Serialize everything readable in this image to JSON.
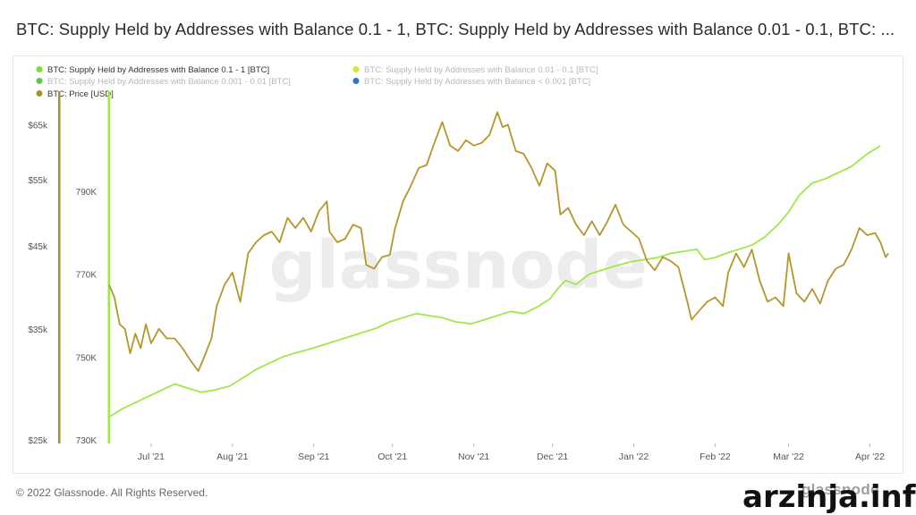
{
  "title": "BTC: Supply Held by Addresses with Balance 0.1 - 1, BTC: Supply Held by Addresses with Balance 0.01 - 0.1, BTC: ...",
  "footer": "© 2022 Glassnode. All Rights Reserved.",
  "brand": "glassnode",
  "overlay_site": "arzinja.info",
  "background_watermark": "glassnode",
  "colors": {
    "supply_line": "#9ee84a",
    "price_line": "#b5962b",
    "left_axis_bar": "#a8902a",
    "legend_disabled_text": "#b8b8b8"
  },
  "legend": [
    {
      "label": "BTC: Supply Held by Addresses with Balance 0.1 - 1 [BTC]",
      "color": "#7cdb3c",
      "active": true
    },
    {
      "label": "BTC: Supply Held by Addresses with Balance 0.01 - 0.1 [BTC]",
      "color": "#d4e83a",
      "active": false
    },
    {
      "label": "BTC: Supply Held by Addresses with Balance 0.001 - 0.01 [BTC]",
      "color": "#5cc843",
      "active": false
    },
    {
      "label": "BTC: Supply Held by Addresses with Balance < 0.001 [BTC]",
      "color": "#2f6fd6",
      "active": false
    },
    {
      "label": "BTC: Price [USD]",
      "color": "#a8902a",
      "active": true
    }
  ],
  "chart_data": {
    "type": "line",
    "title": "BTC: Supply Held by Addresses with Balance 0.1 - 1, BTC: Supply Held by Addresses with Balance 0.01 - 0.1, BTC: ...",
    "x_range": [
      "2021-06-15",
      "2022-04-08"
    ],
    "x_ticks": [
      {
        "label": "Jul '21",
        "date": "2021-07-01"
      },
      {
        "label": "Aug '21",
        "date": "2021-08-01"
      },
      {
        "label": "Sep '21",
        "date": "2021-09-01"
      },
      {
        "label": "Oct '21",
        "date": "2021-10-01"
      },
      {
        "label": "Nov '21",
        "date": "2021-11-01"
      },
      {
        "label": "Dec '21",
        "date": "2021-12-01"
      },
      {
        "label": "Jan '22",
        "date": "2022-01-01"
      },
      {
        "label": "Feb '22",
        "date": "2022-02-01"
      },
      {
        "label": "Mar '22",
        "date": "2022-03-01"
      },
      {
        "label": "Apr '22",
        "date": "2022-04-01"
      }
    ],
    "y_left": {
      "label": "",
      "scale": "log",
      "range": [
        25000,
        70000
      ],
      "ticks": [
        "$25k",
        "$35k",
        "$45k",
        "$55k",
        "$65k"
      ],
      "tick_values": [
        25000,
        35000,
        45000,
        55000,
        65000
      ]
    },
    "y_right": {
      "label": "",
      "range": [
        730000,
        812000
      ],
      "ticks": [
        "730K",
        "750K",
        "770K",
        "790K"
      ],
      "tick_values": [
        730000,
        750000,
        770000,
        790000
      ]
    },
    "grid": false,
    "legend_position": "top-left",
    "series": [
      {
        "name": "BTC: Supply Held by Addresses with Balance 0.1 - 1 [BTC]",
        "axis": "right",
        "color": "#9ee84a",
        "points": [
          [
            "2021-06-15",
            735500
          ],
          [
            "2021-06-20",
            737500
          ],
          [
            "2021-06-25",
            739000
          ],
          [
            "2021-06-30",
            740500
          ],
          [
            "2021-07-05",
            742000
          ],
          [
            "2021-07-10",
            743500
          ],
          [
            "2021-07-15",
            742500
          ],
          [
            "2021-07-20",
            741500
          ],
          [
            "2021-07-25",
            742000
          ],
          [
            "2021-07-31",
            743000
          ],
          [
            "2021-08-05",
            745000
          ],
          [
            "2021-08-10",
            747000
          ],
          [
            "2021-08-15",
            748500
          ],
          [
            "2021-08-20",
            750000
          ],
          [
            "2021-08-25",
            751000
          ],
          [
            "2021-08-31",
            752000
          ],
          [
            "2021-09-05",
            753000
          ],
          [
            "2021-09-10",
            754000
          ],
          [
            "2021-09-15",
            755000
          ],
          [
            "2021-09-20",
            756000
          ],
          [
            "2021-09-25",
            757000
          ],
          [
            "2021-09-30",
            758500
          ],
          [
            "2021-10-05",
            759500
          ],
          [
            "2021-10-10",
            760500
          ],
          [
            "2021-10-15",
            760000
          ],
          [
            "2021-10-20",
            759500
          ],
          [
            "2021-10-25",
            758500
          ],
          [
            "2021-10-31",
            758000
          ],
          [
            "2021-11-05",
            759000
          ],
          [
            "2021-11-10",
            760000
          ],
          [
            "2021-11-15",
            761000
          ],
          [
            "2021-11-20",
            760500
          ],
          [
            "2021-11-25",
            762000
          ],
          [
            "2021-11-30",
            764000
          ],
          [
            "2021-12-03",
            766500
          ],
          [
            "2021-12-06",
            768500
          ],
          [
            "2021-12-10",
            767500
          ],
          [
            "2021-12-15",
            770000
          ],
          [
            "2021-12-20",
            771000
          ],
          [
            "2021-12-25",
            772000
          ],
          [
            "2021-12-31",
            773000
          ],
          [
            "2022-01-05",
            773500
          ],
          [
            "2022-01-10",
            774000
          ],
          [
            "2022-01-15",
            775000
          ],
          [
            "2022-01-20",
            775500
          ],
          [
            "2022-01-25",
            776000
          ],
          [
            "2022-01-28",
            773500
          ],
          [
            "2022-02-01",
            774000
          ],
          [
            "2022-02-05",
            775000
          ],
          [
            "2022-02-10",
            776000
          ],
          [
            "2022-02-15",
            777000
          ],
          [
            "2022-02-20",
            779000
          ],
          [
            "2022-02-25",
            782000
          ],
          [
            "2022-03-01",
            785000
          ],
          [
            "2022-03-05",
            789000
          ],
          [
            "2022-03-10",
            792000
          ],
          [
            "2022-03-15",
            793000
          ],
          [
            "2022-03-20",
            794500
          ],
          [
            "2022-03-25",
            796000
          ],
          [
            "2022-03-31",
            799000
          ],
          [
            "2022-04-05",
            801000
          ]
        ]
      },
      {
        "name": "BTC: Price [USD]",
        "axis": "left",
        "color": "#b5962b",
        "points": [
          [
            "2021-06-15",
            40000
          ],
          [
            "2021-06-17",
            38500
          ],
          [
            "2021-06-19",
            35500
          ],
          [
            "2021-06-21",
            35000
          ],
          [
            "2021-06-23",
            32500
          ],
          [
            "2021-06-25",
            34500
          ],
          [
            "2021-06-27",
            33000
          ],
          [
            "2021-06-29",
            35500
          ],
          [
            "2021-07-01",
            33500
          ],
          [
            "2021-07-04",
            35000
          ],
          [
            "2021-07-07",
            34000
          ],
          [
            "2021-07-10",
            34000
          ],
          [
            "2021-07-13",
            33000
          ],
          [
            "2021-07-16",
            31800
          ],
          [
            "2021-07-19",
            30800
          ],
          [
            "2021-07-21",
            32000
          ],
          [
            "2021-07-24",
            34000
          ],
          [
            "2021-07-26",
            37500
          ],
          [
            "2021-07-29",
            40000
          ],
          [
            "2021-08-01",
            41500
          ],
          [
            "2021-08-04",
            38000
          ],
          [
            "2021-08-07",
            44000
          ],
          [
            "2021-08-10",
            45500
          ],
          [
            "2021-08-13",
            46500
          ],
          [
            "2021-08-16",
            47000
          ],
          [
            "2021-08-19",
            45500
          ],
          [
            "2021-08-22",
            49000
          ],
          [
            "2021-08-25",
            47500
          ],
          [
            "2021-08-28",
            49000
          ],
          [
            "2021-08-31",
            47000
          ],
          [
            "2021-09-03",
            50000
          ],
          [
            "2021-09-06",
            51500
          ],
          [
            "2021-09-07",
            47000
          ],
          [
            "2021-09-10",
            45500
          ],
          [
            "2021-09-13",
            46000
          ],
          [
            "2021-09-16",
            48000
          ],
          [
            "2021-09-19",
            47500
          ],
          [
            "2021-09-21",
            42500
          ],
          [
            "2021-09-24",
            42000
          ],
          [
            "2021-09-27",
            43500
          ],
          [
            "2021-09-30",
            43800
          ],
          [
            "2021-10-02",
            47500
          ],
          [
            "2021-10-05",
            51500
          ],
          [
            "2021-10-08",
            54000
          ],
          [
            "2021-10-11",
            57000
          ],
          [
            "2021-10-14",
            57500
          ],
          [
            "2021-10-17",
            61500
          ],
          [
            "2021-10-20",
            65500
          ],
          [
            "2021-10-23",
            61000
          ],
          [
            "2021-10-26",
            60000
          ],
          [
            "2021-10-29",
            62000
          ],
          [
            "2021-11-01",
            61000
          ],
          [
            "2021-11-04",
            61500
          ],
          [
            "2021-11-07",
            63000
          ],
          [
            "2021-11-10",
            67500
          ],
          [
            "2021-11-12",
            64500
          ],
          [
            "2021-11-14",
            65000
          ],
          [
            "2021-11-17",
            60000
          ],
          [
            "2021-11-20",
            59500
          ],
          [
            "2021-11-23",
            57000
          ],
          [
            "2021-11-26",
            54000
          ],
          [
            "2021-11-29",
            57800
          ],
          [
            "2021-12-02",
            56500
          ],
          [
            "2021-12-04",
            49500
          ],
          [
            "2021-12-07",
            50500
          ],
          [
            "2021-12-10",
            48000
          ],
          [
            "2021-12-13",
            46500
          ],
          [
            "2021-12-16",
            48500
          ],
          [
            "2021-12-19",
            46500
          ],
          [
            "2021-12-22",
            48500
          ],
          [
            "2021-12-25",
            51000
          ],
          [
            "2021-12-28",
            48000
          ],
          [
            "2021-12-31",
            47000
          ],
          [
            "2022-01-03",
            46000
          ],
          [
            "2022-01-06",
            43000
          ],
          [
            "2022-01-09",
            41800
          ],
          [
            "2022-01-12",
            43500
          ],
          [
            "2022-01-15",
            43000
          ],
          [
            "2022-01-18",
            42200
          ],
          [
            "2022-01-21",
            38500
          ],
          [
            "2022-01-23",
            36000
          ],
          [
            "2022-01-26",
            37000
          ],
          [
            "2022-01-29",
            38000
          ],
          [
            "2022-02-01",
            38500
          ],
          [
            "2022-02-04",
            37500
          ],
          [
            "2022-02-06",
            41500
          ],
          [
            "2022-02-09",
            44000
          ],
          [
            "2022-02-12",
            42200
          ],
          [
            "2022-02-15",
            44500
          ],
          [
            "2022-02-18",
            40500
          ],
          [
            "2022-02-21",
            38000
          ],
          [
            "2022-02-24",
            38500
          ],
          [
            "2022-02-27",
            37500
          ],
          [
            "2022-03-01",
            44000
          ],
          [
            "2022-03-04",
            39000
          ],
          [
            "2022-03-07",
            38000
          ],
          [
            "2022-03-10",
            39500
          ],
          [
            "2022-03-13",
            37800
          ],
          [
            "2022-03-16",
            40500
          ],
          [
            "2022-03-19",
            42000
          ],
          [
            "2022-03-22",
            42500
          ],
          [
            "2022-03-25",
            44500
          ],
          [
            "2022-03-28",
            47500
          ],
          [
            "2022-03-31",
            46500
          ],
          [
            "2022-04-03",
            46800
          ],
          [
            "2022-04-05",
            45500
          ],
          [
            "2022-04-07",
            43500
          ],
          [
            "2022-04-08",
            44000
          ]
        ]
      }
    ]
  }
}
